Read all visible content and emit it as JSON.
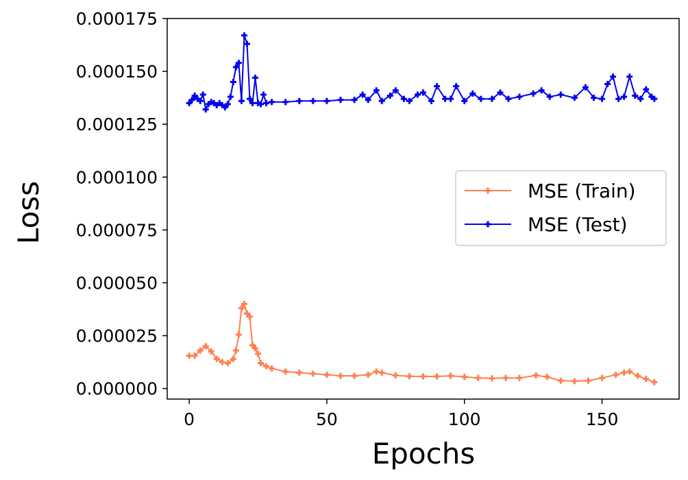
{
  "chart_data": {
    "type": "line",
    "title": "",
    "xlabel": "Epochs",
    "ylabel": "Loss",
    "xlim": [
      -8,
      178
    ],
    "ylim": [
      -5e-06,
      0.000175
    ],
    "xticks": [
      0,
      50,
      100,
      150
    ],
    "xtick_labels": [
      "0",
      "50",
      "100",
      "150"
    ],
    "yticks": [
      0,
      2.5e-05,
      5e-05,
      7.5e-05,
      0.0001,
      0.000125,
      0.00015,
      0.000175
    ],
    "ytick_labels": [
      "0.000000",
      "0.000025",
      "0.000050",
      "0.000075",
      "0.000100",
      "0.000125",
      "0.000150",
      "0.000175"
    ],
    "grid": false,
    "legend_position": "center-right",
    "series": [
      {
        "name": "MSE (Train)",
        "color": "#ff7f50",
        "marker": "plus",
        "points": [
          [
            0,
            1.55e-05
          ],
          [
            2,
            1.55e-05
          ],
          [
            4,
            1.8e-05
          ],
          [
            6,
            2e-05
          ],
          [
            8,
            1.75e-05
          ],
          [
            10,
            1.4e-05
          ],
          [
            12,
            1.25e-05
          ],
          [
            14,
            1.2e-05
          ],
          [
            16,
            1.4e-05
          ],
          [
            17,
            1.8e-05
          ],
          [
            18,
            2.55e-05
          ],
          [
            19,
            3.8e-05
          ],
          [
            20,
            4e-05
          ],
          [
            21,
            3.55e-05
          ],
          [
            22,
            3.4e-05
          ],
          [
            23,
            2.05e-05
          ],
          [
            24,
            1.9e-05
          ],
          [
            25,
            1.65e-05
          ],
          [
            26,
            1.2e-05
          ],
          [
            28,
            1.05e-05
          ],
          [
            30,
            9.5e-06
          ],
          [
            35,
            8e-06
          ],
          [
            40,
            7.5e-06
          ],
          [
            45,
            7e-06
          ],
          [
            50,
            6.5e-06
          ],
          [
            55,
            6e-06
          ],
          [
            60,
            6e-06
          ],
          [
            65,
            6.5e-06
          ],
          [
            68,
            8e-06
          ],
          [
            70,
            7.5e-06
          ],
          [
            75,
            6.2e-06
          ],
          [
            80,
            5.8e-06
          ],
          [
            85,
            5.7e-06
          ],
          [
            90,
            5.7e-06
          ],
          [
            95,
            6e-06
          ],
          [
            100,
            5.5e-06
          ],
          [
            105,
            5e-06
          ],
          [
            110,
            4.8e-06
          ],
          [
            115,
            5e-06
          ],
          [
            120,
            5e-06
          ],
          [
            126,
            6.2e-06
          ],
          [
            130,
            5.5e-06
          ],
          [
            135,
            3.7e-06
          ],
          [
            140,
            3.5e-06
          ],
          [
            145,
            3.7e-06
          ],
          [
            150,
            5e-06
          ],
          [
            155,
            6.5e-06
          ],
          [
            158,
            7.5e-06
          ],
          [
            160,
            8e-06
          ],
          [
            163,
            6e-06
          ],
          [
            166,
            4.5e-06
          ],
          [
            169,
            3e-06
          ]
        ]
      },
      {
        "name": "MSE (Test)",
        "color": "#0000ee",
        "marker": "plus",
        "points": [
          [
            0,
            0.000135
          ],
          [
            1,
            0.0001365
          ],
          [
            2,
            0.0001385
          ],
          [
            3,
            0.000137
          ],
          [
            4,
            0.000136
          ],
          [
            5,
            0.000139
          ],
          [
            6,
            0.000132
          ],
          [
            7,
            0.0001345
          ],
          [
            8,
            0.0001355
          ],
          [
            9,
            0.000135
          ],
          [
            10,
            0.000134
          ],
          [
            11,
            0.000135
          ],
          [
            12,
            0.000134
          ],
          [
            13,
            0.000133
          ],
          [
            14,
            0.0001345
          ],
          [
            15,
            0.000138
          ],
          [
            16,
            0.000145
          ],
          [
            17,
            0.000152
          ],
          [
            18,
            0.000154
          ],
          [
            19,
            0.000136
          ],
          [
            20,
            0.000167
          ],
          [
            21,
            0.000163
          ],
          [
            22,
            0.000137
          ],
          [
            23,
            0.000135
          ],
          [
            24,
            0.000147
          ],
          [
            25,
            0.000135
          ],
          [
            26,
            0.0001345
          ],
          [
            27,
            0.000139
          ],
          [
            28,
            0.000135
          ],
          [
            30,
            0.0001355
          ],
          [
            35,
            0.0001355
          ],
          [
            40,
            0.000136
          ],
          [
            45,
            0.000136
          ],
          [
            50,
            0.000136
          ],
          [
            55,
            0.0001365
          ],
          [
            60,
            0.0001365
          ],
          [
            63,
            0.000139
          ],
          [
            65,
            0.0001365
          ],
          [
            68,
            0.000141
          ],
          [
            70,
            0.000136
          ],
          [
            73,
            0.0001385
          ],
          [
            75,
            0.000141
          ],
          [
            78,
            0.000137
          ],
          [
            80,
            0.000136
          ],
          [
            83,
            0.000139
          ],
          [
            85,
            0.00014
          ],
          [
            88,
            0.000136
          ],
          [
            90,
            0.000143
          ],
          [
            93,
            0.000137
          ],
          [
            95,
            0.000137
          ],
          [
            97,
            0.000143
          ],
          [
            100,
            0.000136
          ],
          [
            103,
            0.0001395
          ],
          [
            106,
            0.000137
          ],
          [
            110,
            0.000137
          ],
          [
            113,
            0.00014
          ],
          [
            116,
            0.000137
          ],
          [
            120,
            0.000138
          ],
          [
            125,
            0.0001395
          ],
          [
            128,
            0.000141
          ],
          [
            131,
            0.000138
          ],
          [
            135,
            0.000139
          ],
          [
            140,
            0.0001375
          ],
          [
            144,
            0.0001425
          ],
          [
            147,
            0.0001375
          ],
          [
            150,
            0.000137
          ],
          [
            152,
            0.000144
          ],
          [
            154,
            0.0001475
          ],
          [
            156,
            0.000137
          ],
          [
            158,
            0.000138
          ],
          [
            160,
            0.0001475
          ],
          [
            162,
            0.0001385
          ],
          [
            164,
            0.000137
          ],
          [
            166,
            0.0001415
          ],
          [
            168,
            0.000138
          ],
          [
            169,
            0.000137
          ]
        ]
      }
    ]
  }
}
